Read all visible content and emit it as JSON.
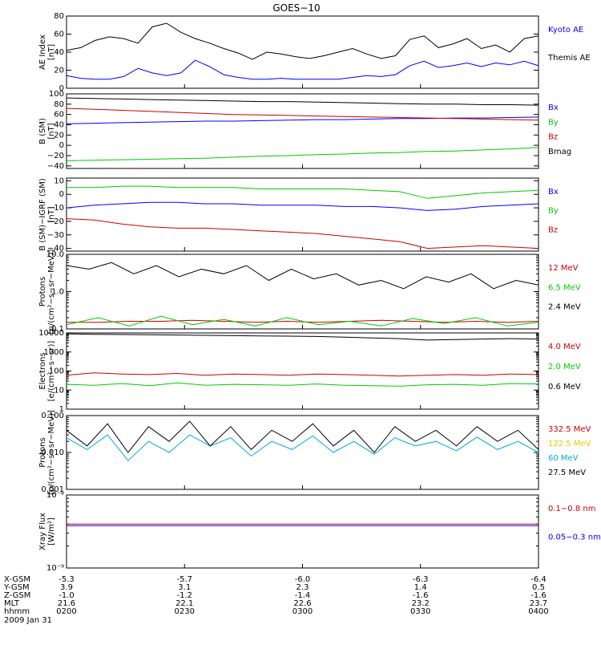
{
  "title": "GOES−10",
  "colors": {
    "black": "#000000",
    "blue": "#0000ff",
    "green": "#00cc00",
    "red": "#cc0000",
    "yellow": "#e6c800",
    "cyan": "#00aadd",
    "darkred": "#aa0000"
  },
  "footer": {
    "rows": [
      {
        "label": "X-GSM",
        "values": [
          "-5.3",
          "-5.7",
          "-6.0",
          "-6.3",
          "-6.4"
        ]
      },
      {
        "label": "Y-GSM",
        "values": [
          "3.9",
          "3.1",
          "2.3",
          "1.4",
          "0.5"
        ]
      },
      {
        "label": "Z-GSM",
        "values": [
          "-1.0",
          "-1.2",
          "-1.4",
          "-1.6",
          "-1.6"
        ]
      },
      {
        "label": "MLT",
        "values": [
          "21.6",
          "22.1",
          "22.6",
          "23.2",
          "23.7"
        ]
      },
      {
        "label": "hhmm",
        "values": [
          "0200",
          "0230",
          "0300",
          "0330",
          "0400"
        ]
      }
    ],
    "date": "2009 Jan 31"
  },
  "chart_data": [
    {
      "type": "line",
      "ylabel": "AE Index\n[nT]",
      "yscale": "linear",
      "ylim": [
        0,
        80
      ],
      "ticks": [
        "0",
        "20",
        "40",
        "60",
        "80"
      ],
      "tick_values": [
        0,
        20,
        40,
        60,
        80
      ],
      "series": [
        {
          "name": "Kyoto AE",
          "color": "#0000ff",
          "values": [
            14,
            11,
            10,
            10,
            13,
            22,
            17,
            14,
            17,
            31,
            24,
            15,
            12,
            10,
            10,
            11,
            10,
            10,
            10,
            10,
            12,
            14,
            13,
            15,
            25,
            30,
            23,
            25,
            28,
            24,
            28,
            26,
            30,
            25
          ]
        },
        {
          "name": "Themis AE",
          "color": "#000000",
          "values": [
            42,
            45,
            53,
            57,
            55,
            50,
            68,
            72,
            62,
            55,
            50,
            44,
            39,
            32,
            40,
            38,
            35,
            33,
            36,
            40,
            44,
            38,
            33,
            36,
            54,
            58,
            45,
            49,
            55,
            44,
            48,
            40,
            55,
            58
          ]
        }
      ]
    },
    {
      "type": "line",
      "ylabel": "B (SM)\n[nT]",
      "yscale": "linear",
      "ylim": [
        -45,
        100
      ],
      "ticks": [
        "−40",
        "−20",
        "0",
        "20",
        "40",
        "60",
        "80",
        "100"
      ],
      "tick_values": [
        -40,
        -20,
        0,
        20,
        40,
        60,
        80,
        100
      ],
      "series": [
        {
          "name": "Bx",
          "color": "#0000ff",
          "values": [
            42,
            43,
            44,
            45,
            46,
            47,
            47,
            48,
            49,
            50,
            50,
            51,
            52,
            52,
            53,
            53,
            54,
            55
          ]
        },
        {
          "name": "By",
          "color": "#00cc00",
          "values": [
            -30,
            -29,
            -28,
            -27,
            -26,
            -25,
            -23,
            -21,
            -20,
            -18,
            -17,
            -15,
            -14,
            -12,
            -11,
            -9,
            -7,
            -4
          ]
        },
        {
          "name": "Bz",
          "color": "#cc0000",
          "values": [
            72,
            70,
            68,
            66,
            64,
            62,
            60,
            59,
            58,
            57,
            56,
            55,
            54,
            53,
            52,
            51,
            50,
            49
          ]
        },
        {
          "name": "Bmag",
          "color": "#000000",
          "values": [
            92,
            91,
            90,
            89,
            88,
            87,
            86,
            85,
            85,
            84,
            83,
            82,
            81,
            80,
            80,
            79,
            79,
            78
          ]
        }
      ]
    },
    {
      "type": "line",
      "ylabel": "B (SM)−IGRF (SM)\n[nT]",
      "yscale": "linear",
      "ylim": [
        -42,
        12
      ],
      "ticks": [
        "−40",
        "−30",
        "−20",
        "−10",
        "0",
        "10"
      ],
      "tick_values": [
        -40,
        -30,
        -20,
        -10,
        0,
        10
      ],
      "series": [
        {
          "name": "Bx",
          "color": "#0000ff",
          "values": [
            -10,
            -8,
            -7,
            -6,
            -6,
            -7,
            -7,
            -8,
            -8,
            -8,
            -9,
            -9,
            -10,
            -12,
            -11,
            -9,
            -8,
            -7
          ]
        },
        {
          "name": "By",
          "color": "#00cc00",
          "values": [
            5,
            5,
            6,
            6,
            5,
            5,
            5,
            4,
            4,
            4,
            4,
            3,
            2,
            -3,
            -1,
            1,
            2,
            3
          ]
        },
        {
          "name": "Bz",
          "color": "#cc0000",
          "values": [
            -18,
            -19,
            -22,
            -24,
            -25,
            -25,
            -26,
            -27,
            -28,
            -29,
            -31,
            -33,
            -35,
            -40,
            -39,
            -38,
            -39,
            -40
          ]
        }
      ]
    },
    {
      "type": "line",
      "ylabel": "Protons\n[p/(cm²−s−sr−MeV)]",
      "yscale": "log",
      "ylim": [
        0.1,
        10
      ],
      "ticks": [
        "0.1",
        "1.0",
        "10.0"
      ],
      "tick_values": [
        0.1,
        1,
        10
      ],
      "series": [
        {
          "name": "12 MeV",
          "color": "#cc0000",
          "values": [
            0.15,
            0.15,
            0.16,
            0.16,
            0.17,
            0.16,
            0.15,
            0.16,
            0.15,
            0.16,
            0.17,
            0.16,
            0.15,
            0.16,
            0.15,
            0.16
          ]
        },
        {
          "name": "6.5 MeV",
          "color": "#00cc00",
          "values": [
            0.13,
            0.2,
            0.12,
            0.22,
            0.13,
            0.18,
            0.12,
            0.2,
            0.13,
            0.16,
            0.12,
            0.19,
            0.14,
            0.2,
            0.12,
            0.15
          ]
        },
        {
          "name": "2.4 MeV",
          "color": "#000000",
          "values": [
            5,
            4,
            6,
            3,
            5,
            2.5,
            4,
            3,
            5,
            2,
            4,
            2.2,
            3,
            1.5,
            2,
            1.2,
            2.5,
            1.8,
            3,
            1.2,
            2,
            1.5
          ]
        }
      ]
    },
    {
      "type": "line",
      "ylabel": "Electrons\n[e/(cm²−s−sr)]",
      "yscale": "log",
      "ylim": [
        1,
        10000
      ],
      "ticks": [
        "1",
        "10",
        "100",
        "1000",
        "10000"
      ],
      "tick_values": [
        1,
        10,
        100,
        1000,
        10000
      ],
      "series": [
        {
          "name": "4.0 MeV",
          "color": "#cc0000",
          "values": [
            60,
            80,
            70,
            65,
            75,
            60,
            70,
            65,
            60,
            70,
            65,
            60,
            55,
            60,
            65,
            60,
            70,
            65
          ]
        },
        {
          "name": "2.0 MeV",
          "color": "#00cc00",
          "values": [
            20,
            18,
            22,
            17,
            24,
            18,
            20,
            19,
            18,
            21,
            18,
            17,
            16,
            19,
            20,
            18,
            22,
            21
          ]
        },
        {
          "name": "0.6 MeV",
          "color": "#000000",
          "values": [
            9000,
            8500,
            8200,
            8000,
            7800,
            7500,
            7200,
            7000,
            6800,
            6500,
            6000,
            5500,
            5000,
            4200,
            4500,
            4800,
            5000,
            4800
          ]
        }
      ]
    },
    {
      "type": "line",
      "ylabel": "Protons\n[p/(cm²−s−sr−MeV)]",
      "yscale": "log",
      "ylim": [
        0.001,
        0.1
      ],
      "ticks": [
        "0.001",
        "0.010",
        "0.100"
      ],
      "tick_values": [
        0.001,
        0.01,
        0.1
      ],
      "series": [
        {
          "name": "332.5 MeV",
          "color": "#cc0000",
          "values": []
        },
        {
          "name": "122.5 MeV",
          "color": "#e6c800",
          "values": []
        },
        {
          "name": "60 MeV",
          "color": "#00aadd",
          "values": [
            0.025,
            0.012,
            0.03,
            0.006,
            0.02,
            0.01,
            0.03,
            0.015,
            0.025,
            0.008,
            0.02,
            0.012,
            0.028,
            0.01,
            0.02,
            0.009,
            0.025,
            0.015,
            0.02,
            0.011,
            0.026,
            0.012,
            0.02,
            0.01
          ]
        },
        {
          "name": "27.5 MeV",
          "color": "#000000",
          "values": [
            0.04,
            0.015,
            0.06,
            0.01,
            0.05,
            0.02,
            0.07,
            0.015,
            0.05,
            0.012,
            0.04,
            0.02,
            0.06,
            0.015,
            0.04,
            0.01,
            0.05,
            0.02,
            0.04,
            0.015,
            0.05,
            0.02,
            0.04,
            0.012
          ]
        }
      ]
    },
    {
      "type": "line",
      "ylabel": "Xray Flux\n[W/m²]",
      "yscale": "log",
      "ylim": [
        1e-09,
        1e-08
      ],
      "ticks": [
        "10⁻⁹",
        "10⁻⁸"
      ],
      "tick_values": [
        1e-09,
        1e-08
      ],
      "series": [
        {
          "name": "0.1−0.8 nm",
          "color": "#cc0000",
          "values": [
            4e-09,
            4e-09,
            4e-09,
            4e-09,
            4e-09,
            4e-09
          ]
        },
        {
          "name": "0.05−0.3 nm",
          "color": "#0000ff",
          "values": [
            3.8e-09,
            3.8e-09,
            3.8e-09,
            3.8e-09,
            3.8e-09,
            3.8e-09
          ]
        }
      ]
    }
  ]
}
